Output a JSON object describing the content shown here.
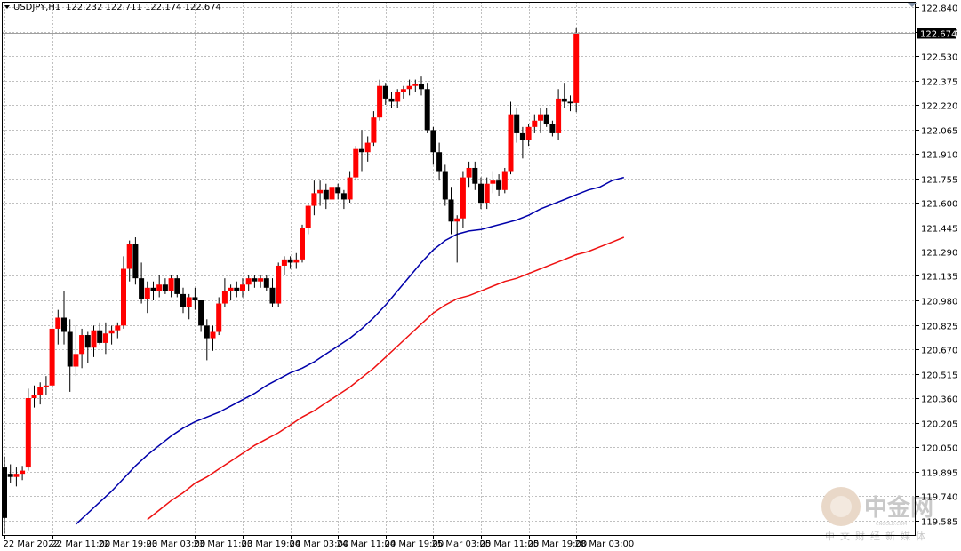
{
  "header": {
    "symbol": "USDJPY,H1",
    "ohlc": "122.232 122.711 122.174 122.674"
  },
  "current_price_label": "122.674",
  "watermark": {
    "brand": "中金网",
    "domain": "CNGOLD.COM",
    "tagline": "中文财经新媒体"
  },
  "colors": {
    "bull": "#ff0000",
    "bear": "#000000",
    "ma_fast": "#0000aa",
    "ma_slow": "#ee1111",
    "price_label_bg": "#000000",
    "price_label_text": "#ffffff"
  },
  "chart_data": {
    "type": "candlestick",
    "symbol": "USDJPY",
    "timeframe": "H1",
    "ylim": [
      119.5,
      122.9
    ],
    "y_ticks": [
      "122.840",
      "122.685",
      "122.530",
      "122.375",
      "122.220",
      "122.065",
      "121.910",
      "121.755",
      "121.600",
      "121.445",
      "121.290",
      "121.135",
      "120.980",
      "120.825",
      "120.670",
      "120.515",
      "120.360",
      "120.205",
      "120.050",
      "119.895",
      "119.740",
      "119.585"
    ],
    "x_ticks": [
      "22 Mar 2022",
      "22 Mar 11:00",
      "22 Mar 19:00",
      "23 Mar 03:00",
      "23 Mar 11:00",
      "23 Mar 19:00",
      "24 Mar 03:00",
      "24 Mar 11:00",
      "24 Mar 19:00",
      "25 Mar 03:00",
      "25 Mar 11:00",
      "25 Mar 19:00",
      "28 Mar 03:00"
    ],
    "x_tick_bar_index": [
      0,
      8,
      16,
      24,
      32,
      40,
      48,
      56,
      64,
      72,
      80,
      88,
      96
    ],
    "grid": true,
    "current_price": 122.674,
    "candles": [
      [
        119.92,
        119.99,
        119.5,
        119.6
      ],
      [
        119.88,
        119.94,
        119.82,
        119.86
      ],
      [
        119.86,
        119.92,
        119.8,
        119.88
      ],
      [
        119.88,
        119.93,
        119.84,
        119.9
      ],
      [
        119.92,
        120.42,
        119.9,
        120.36
      ],
      [
        120.36,
        120.44,
        120.3,
        120.38
      ],
      [
        120.38,
        120.46,
        120.32,
        120.43
      ],
      [
        120.43,
        120.5,
        120.38,
        120.44
      ],
      [
        120.44,
        120.86,
        120.42,
        120.8
      ],
      [
        120.8,
        120.92,
        120.7,
        120.87
      ],
      [
        120.87,
        121.04,
        120.7,
        120.78
      ],
      [
        120.78,
        120.86,
        120.4,
        120.56
      ],
      [
        120.56,
        120.82,
        120.5,
        120.64
      ],
      [
        120.64,
        120.8,
        120.55,
        120.76
      ],
      [
        120.76,
        120.78,
        120.58,
        120.68
      ],
      [
        120.68,
        120.82,
        120.62,
        120.79
      ],
      [
        120.79,
        120.84,
        120.7,
        120.71
      ],
      [
        120.71,
        120.84,
        120.64,
        120.77
      ],
      [
        120.77,
        120.82,
        120.7,
        120.79
      ],
      [
        120.79,
        120.84,
        120.74,
        120.82
      ],
      [
        120.82,
        121.26,
        120.8,
        121.18
      ],
      [
        121.18,
        121.36,
        121.1,
        121.34
      ],
      [
        121.34,
        121.38,
        121.08,
        121.12
      ],
      [
        121.12,
        121.22,
        120.96,
        120.99
      ],
      [
        120.99,
        121.1,
        120.9,
        121.06
      ],
      [
        121.06,
        121.1,
        120.98,
        121.04
      ],
      [
        121.04,
        121.14,
        121.0,
        121.08
      ],
      [
        121.08,
        121.12,
        121.02,
        121.04
      ],
      [
        121.04,
        121.14,
        121.0,
        121.12
      ],
      [
        121.12,
        121.14,
        121.0,
        121.02
      ],
      [
        121.02,
        121.06,
        120.9,
        120.94
      ],
      [
        120.94,
        121.02,
        120.86,
        121.0
      ],
      [
        121.0,
        121.06,
        120.92,
        120.98
      ],
      [
        120.98,
        120.98,
        120.78,
        120.82
      ],
      [
        120.82,
        120.86,
        120.6,
        120.74
      ],
      [
        120.74,
        120.82,
        120.66,
        120.78
      ],
      [
        120.78,
        121.0,
        120.76,
        120.96
      ],
      [
        120.96,
        121.12,
        120.94,
        121.04
      ],
      [
        121.04,
        121.08,
        120.98,
        121.06
      ],
      [
        121.06,
        121.1,
        121.0,
        121.04
      ],
      [
        121.04,
        121.12,
        121.0,
        121.08
      ],
      [
        121.08,
        121.14,
        121.04,
        121.12
      ],
      [
        121.12,
        121.14,
        121.06,
        121.1
      ],
      [
        121.1,
        121.14,
        121.06,
        121.12
      ],
      [
        121.12,
        121.14,
        121.04,
        121.06
      ],
      [
        121.06,
        121.12,
        120.94,
        120.96
      ],
      [
        120.96,
        121.22,
        120.94,
        121.2
      ],
      [
        121.2,
        121.26,
        121.14,
        121.24
      ],
      [
        121.24,
        121.26,
        121.18,
        121.22
      ],
      [
        121.22,
        121.28,
        121.18,
        121.24
      ],
      [
        121.24,
        121.46,
        121.22,
        121.44
      ],
      [
        121.44,
        121.6,
        121.4,
        121.58
      ],
      [
        121.58,
        121.74,
        121.52,
        121.66
      ],
      [
        121.66,
        121.74,
        121.58,
        121.68
      ],
      [
        121.68,
        121.72,
        121.56,
        121.62
      ],
      [
        121.62,
        121.74,
        121.58,
        121.7
      ],
      [
        121.7,
        121.72,
        121.62,
        121.66
      ],
      [
        121.66,
        121.68,
        121.56,
        121.62
      ],
      [
        121.62,
        121.8,
        121.6,
        121.76
      ],
      [
        121.76,
        121.96,
        121.74,
        121.94
      ],
      [
        121.94,
        122.06,
        121.8,
        121.92
      ],
      [
        121.92,
        122.02,
        121.86,
        121.98
      ],
      [
        121.98,
        122.18,
        121.96,
        122.14
      ],
      [
        122.14,
        122.38,
        122.12,
        122.34
      ],
      [
        122.34,
        122.36,
        122.22,
        122.26
      ],
      [
        122.26,
        122.3,
        122.2,
        122.24
      ],
      [
        122.24,
        122.32,
        122.2,
        122.3
      ],
      [
        122.3,
        122.34,
        122.26,
        122.32
      ],
      [
        122.32,
        122.38,
        122.28,
        122.34
      ],
      [
        122.34,
        122.38,
        122.3,
        122.35
      ],
      [
        122.35,
        122.4,
        122.28,
        122.32
      ],
      [
        122.32,
        122.36,
        122.04,
        122.06
      ],
      [
        122.06,
        122.08,
        121.84,
        121.92
      ],
      [
        121.92,
        121.98,
        121.74,
        121.8
      ],
      [
        121.8,
        121.84,
        121.58,
        121.62
      ],
      [
        121.62,
        121.7,
        121.4,
        121.48
      ],
      [
        121.48,
        121.52,
        121.22,
        121.5
      ],
      [
        121.5,
        121.8,
        121.44,
        121.76
      ],
      [
        121.76,
        121.86,
        121.7,
        121.82
      ],
      [
        121.82,
        121.86,
        121.68,
        121.72
      ],
      [
        121.72,
        121.76,
        121.56,
        121.6
      ],
      [
        121.6,
        121.76,
        121.56,
        121.72
      ],
      [
        121.72,
        121.8,
        121.66,
        121.74
      ],
      [
        121.74,
        121.78,
        121.64,
        121.68
      ],
      [
        121.68,
        121.82,
        121.66,
        121.8
      ],
      [
        121.8,
        122.24,
        121.78,
        122.16
      ],
      [
        122.16,
        122.2,
        121.98,
        122.04
      ],
      [
        122.04,
        122.08,
        121.88,
        122.0
      ],
      [
        122.0,
        122.1,
        121.96,
        122.08
      ],
      [
        122.08,
        122.16,
        122.04,
        122.12
      ],
      [
        122.12,
        122.2,
        122.04,
        122.16
      ],
      [
        122.16,
        122.2,
        122.08,
        122.1
      ],
      [
        122.1,
        122.12,
        122.02,
        122.04
      ],
      [
        122.04,
        122.32,
        122.0,
        122.26
      ],
      [
        122.26,
        122.36,
        122.2,
        122.24
      ],
      [
        122.24,
        122.28,
        122.18,
        122.23
      ],
      [
        122.232,
        122.711,
        122.174,
        122.674
      ]
    ],
    "ma_fast": [
      [
        12,
        119.56
      ],
      [
        14,
        119.63
      ],
      [
        16,
        119.7
      ],
      [
        18,
        119.77
      ],
      [
        20,
        119.85
      ],
      [
        22,
        119.93
      ],
      [
        24,
        120.0
      ],
      [
        26,
        120.06
      ],
      [
        28,
        120.12
      ],
      [
        30,
        120.17
      ],
      [
        32,
        120.21
      ],
      [
        34,
        120.24
      ],
      [
        36,
        120.27
      ],
      [
        38,
        120.31
      ],
      [
        40,
        120.35
      ],
      [
        42,
        120.39
      ],
      [
        44,
        120.44
      ],
      [
        46,
        120.48
      ],
      [
        48,
        120.52
      ],
      [
        50,
        120.55
      ],
      [
        52,
        120.59
      ],
      [
        54,
        120.64
      ],
      [
        56,
        120.69
      ],
      [
        58,
        120.74
      ],
      [
        60,
        120.8
      ],
      [
        62,
        120.87
      ],
      [
        64,
        120.95
      ],
      [
        66,
        121.04
      ],
      [
        68,
        121.13
      ],
      [
        70,
        121.22
      ],
      [
        72,
        121.3
      ],
      [
        74,
        121.36
      ],
      [
        76,
        121.4
      ],
      [
        78,
        121.42
      ],
      [
        80,
        121.43
      ],
      [
        82,
        121.45
      ],
      [
        84,
        121.47
      ],
      [
        86,
        121.49
      ],
      [
        88,
        121.52
      ],
      [
        90,
        121.56
      ],
      [
        92,
        121.59
      ],
      [
        94,
        121.62
      ],
      [
        96,
        121.65
      ],
      [
        98,
        121.68
      ],
      [
        100,
        121.7
      ],
      [
        102,
        121.74
      ],
      [
        104,
        121.76
      ]
    ],
    "ma_slow": [
      [
        24,
        119.59
      ],
      [
        26,
        119.65
      ],
      [
        28,
        119.71
      ],
      [
        30,
        119.76
      ],
      [
        32,
        119.82
      ],
      [
        34,
        119.86
      ],
      [
        36,
        119.91
      ],
      [
        38,
        119.96
      ],
      [
        40,
        120.01
      ],
      [
        42,
        120.06
      ],
      [
        44,
        120.1
      ],
      [
        46,
        120.14
      ],
      [
        48,
        120.19
      ],
      [
        50,
        120.24
      ],
      [
        52,
        120.28
      ],
      [
        54,
        120.33
      ],
      [
        56,
        120.38
      ],
      [
        58,
        120.43
      ],
      [
        60,
        120.49
      ],
      [
        62,
        120.55
      ],
      [
        64,
        120.62
      ],
      [
        66,
        120.69
      ],
      [
        68,
        120.76
      ],
      [
        70,
        120.83
      ],
      [
        72,
        120.9
      ],
      [
        74,
        120.95
      ],
      [
        76,
        120.99
      ],
      [
        78,
        121.01
      ],
      [
        80,
        121.04
      ],
      [
        82,
        121.07
      ],
      [
        84,
        121.1
      ],
      [
        86,
        121.12
      ],
      [
        88,
        121.15
      ],
      [
        90,
        121.18
      ],
      [
        92,
        121.21
      ],
      [
        94,
        121.24
      ],
      [
        96,
        121.27
      ],
      [
        98,
        121.29
      ],
      [
        100,
        121.32
      ],
      [
        102,
        121.35
      ],
      [
        104,
        121.38
      ]
    ]
  }
}
